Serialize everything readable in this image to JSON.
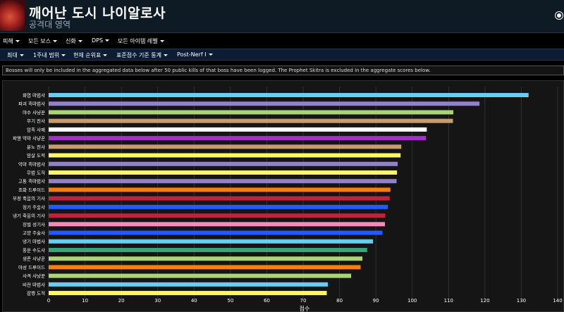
{
  "header": {
    "title": "깨어난 도시 나이알로사",
    "subtitle": "공격대 영역"
  },
  "menu": {
    "items": [
      {
        "label": "피해"
      },
      {
        "label": "모든 보스"
      },
      {
        "label": "신화"
      },
      {
        "label": "DPS"
      },
      {
        "label": "모든 아이템 레벨"
      }
    ]
  },
  "filters": {
    "items": [
      {
        "label": "최대"
      },
      {
        "label": "1주내 범위"
      },
      {
        "label": "현재 순위표"
      },
      {
        "label": "표준점수 기준 통계"
      },
      {
        "label": "Post-Nerf I"
      }
    ]
  },
  "notice": "Bosses will only be included in the aggregated data below after 50 public kills of that boss have been logged. The Prophet Skitra is excluded in the aggregate scores below.",
  "chart_data": {
    "type": "bar",
    "orientation": "horizontal",
    "categories": [
      "화염 마법사",
      "파괴 흑마법사",
      "야수 사냥꾼",
      "무기 전사",
      "암흑 사제",
      "파멸 악마 사냥꾼",
      "분노 전사",
      "암살 도적",
      "악마 흑마법사",
      "무법 도적",
      "고통 흑마법사",
      "조화 드루이드",
      "부정 죽음의 기사",
      "정기 주술사",
      "냉기 죽음의 기사",
      "징벌 성기사",
      "고양 주술사",
      "냉기 마법사",
      "풍운 수도사",
      "생존 사냥꾼",
      "야성 드루이드",
      "사격 사냥꾼",
      "비전 마법사",
      "잠행 도적"
    ],
    "values": [
      132.0,
      118.5,
      111.3,
      111.2,
      104.0,
      103.8,
      97.0,
      96.8,
      96.0,
      95.8,
      95.7,
      94.0,
      93.8,
      93.3,
      92.6,
      92.5,
      91.8,
      89.2,
      87.6,
      86.3,
      85.8,
      83.2,
      76.8,
      76.5
    ],
    "colors": [
      "#69ccf0",
      "#9482c9",
      "#abd473",
      "#c79c6e",
      "#ffffff",
      "#a330c9",
      "#c79c6e",
      "#fff569",
      "#9482c9",
      "#fff569",
      "#9482c9",
      "#ff7d0a",
      "#c41f3b",
      "#2459ff",
      "#c41f3b",
      "#f58cba",
      "#2459ff",
      "#69ccf0",
      "#3aa57a",
      "#abd473",
      "#ff7d0a",
      "#abd473",
      "#69ccf0",
      "#fff569"
    ],
    "xlabel": "점수",
    "xlim": [
      0,
      140
    ],
    "xticks": [
      0,
      10,
      20,
      30,
      40,
      50,
      60,
      70,
      80,
      90,
      100,
      110,
      120,
      130,
      140
    ],
    "grid": true
  }
}
